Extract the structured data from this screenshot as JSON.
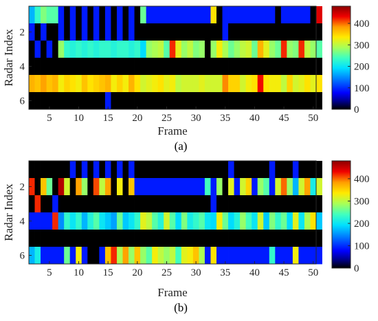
{
  "chart_data": [
    {
      "type": "heatmap",
      "caption": "(a)",
      "xlabel": "Frame",
      "ylabel": "Radar Index",
      "x_range": [
        1.5,
        50.5
      ],
      "y_range": [
        0.5,
        6.5
      ],
      "xticks": [
        5,
        10,
        15,
        20,
        25,
        30,
        35,
        40,
        45,
        50
      ],
      "yticks": [
        2,
        4,
        6
      ],
      "colorbar": {
        "range": [
          0,
          480
        ],
        "ticks": [
          0,
          100,
          200,
          300,
          400
        ],
        "colormap": "jet"
      },
      "rows": [
        [
          170,
          230,
          270,
          250,
          250,
          90,
          0,
          90,
          0,
          90,
          0,
          90,
          0,
          90,
          0,
          90,
          0,
          90,
          0,
          260,
          90,
          90,
          90,
          90,
          90,
          90,
          90,
          90,
          90,
          90,
          90,
          340,
          0,
          90,
          90,
          90,
          90,
          90,
          90,
          90,
          90,
          90,
          0,
          90,
          90,
          90,
          90,
          90,
          0,
          440
        ],
        [
          90,
          0,
          90,
          0,
          0,
          90,
          0,
          90,
          0,
          90,
          0,
          90,
          0,
          90,
          0,
          90,
          0,
          90,
          0,
          0,
          0,
          0,
          0,
          0,
          0,
          0,
          0,
          0,
          0,
          0,
          0,
          0,
          0,
          90,
          0,
          0,
          0,
          0,
          0,
          0,
          0,
          0,
          0,
          0,
          0,
          0,
          0,
          0,
          0,
          0
        ],
        [
          0,
          90,
          0,
          90,
          0,
          280,
          230,
          220,
          230,
          220,
          230,
          220,
          230,
          230,
          220,
          230,
          230,
          220,
          230,
          190,
          280,
          290,
          300,
          250,
          420,
          320,
          280,
          300,
          270,
          280,
          0,
          280,
          330,
          290,
          260,
          280,
          300,
          310,
          260,
          370,
          320,
          280,
          260,
          420,
          280,
          270,
          420,
          300,
          280,
          250
        ],
        [
          0,
          0,
          0,
          0,
          0,
          0,
          0,
          0,
          0,
          0,
          0,
          0,
          0,
          0,
          0,
          0,
          0,
          0,
          0,
          0,
          0,
          0,
          0,
          0,
          0,
          0,
          0,
          0,
          0,
          0,
          0,
          0,
          0,
          0,
          0,
          0,
          0,
          0,
          0,
          0,
          0,
          0,
          0,
          0,
          0,
          0,
          0,
          0,
          0,
          0
        ],
        [
          370,
          360,
          380,
          360,
          370,
          330,
          350,
          340,
          330,
          360,
          340,
          350,
          360,
          370,
          330,
          350,
          330,
          370,
          340,
          310,
          320,
          330,
          340,
          320,
          330,
          300,
          310,
          310,
          310,
          320,
          310,
          310,
          310,
          390,
          350,
          350,
          310,
          330,
          340,
          430,
          340,
          330,
          330,
          300,
          350,
          310,
          320,
          340,
          320,
          340
        ],
        [
          0,
          0,
          0,
          0,
          0,
          0,
          0,
          0,
          0,
          0,
          0,
          0,
          0,
          90,
          0,
          0,
          0,
          0,
          0,
          0,
          0,
          0,
          0,
          0,
          0,
          0,
          0,
          0,
          0,
          0,
          0,
          0,
          0,
          0,
          0,
          0,
          0,
          0,
          0,
          0,
          0,
          0,
          0,
          0,
          0,
          0,
          0,
          0,
          0,
          0
        ]
      ]
    },
    {
      "type": "heatmap",
      "caption": "(b)",
      "xlabel": "Frame",
      "ylabel": "Radar Index",
      "x_range": [
        1.5,
        50.5
      ],
      "y_range": [
        0.5,
        6.5
      ],
      "xticks": [
        5,
        10,
        15,
        20,
        25,
        30,
        35,
        40,
        45,
        50
      ],
      "yticks": [
        2,
        4,
        6
      ],
      "colorbar": {
        "range": [
          0,
          480
        ],
        "ticks": [
          0,
          100,
          200,
          300,
          400
        ],
        "colormap": "jet"
      },
      "rows": [
        [
          0,
          0,
          0,
          0,
          0,
          0,
          0,
          90,
          0,
          90,
          0,
          90,
          0,
          90,
          0,
          90,
          0,
          90,
          0,
          0,
          0,
          0,
          0,
          0,
          0,
          0,
          0,
          0,
          0,
          0,
          0,
          0,
          0,
          0,
          90,
          0,
          0,
          0,
          0,
          0,
          0,
          90,
          0,
          0,
          0,
          90,
          0,
          0,
          0,
          0
        ],
        [
          420,
          0,
          360,
          260,
          0,
          460,
          310,
          0,
          380,
          280,
          0,
          410,
          300,
          380,
          0,
          330,
          0,
          360,
          90,
          90,
          90,
          90,
          90,
          90,
          90,
          90,
          90,
          90,
          90,
          90,
          240,
          90,
          280,
          0,
          320,
          90,
          310,
          350,
          90,
          280,
          250,
          90,
          310,
          400,
          280,
          170,
          310,
          380,
          210,
          310
        ],
        [
          0,
          420,
          0,
          0,
          90,
          0,
          0,
          0,
          0,
          0,
          0,
          0,
          0,
          0,
          0,
          0,
          0,
          0,
          0,
          0,
          0,
          0,
          0,
          0,
          0,
          0,
          0,
          0,
          0,
          0,
          0,
          90,
          0,
          0,
          0,
          0,
          0,
          0,
          0,
          0,
          0,
          0,
          0,
          0,
          0,
          0,
          0,
          0,
          0,
          0
        ],
        [
          90,
          90,
          90,
          90,
          420,
          150,
          230,
          200,
          230,
          170,
          220,
          250,
          200,
          180,
          160,
          260,
          180,
          200,
          230,
          320,
          300,
          250,
          220,
          310,
          250,
          190,
          270,
          210,
          230,
          250,
          200,
          190,
          330,
          260,
          190,
          220,
          280,
          240,
          200,
          310,
          180,
          270,
          230,
          260,
          190,
          320,
          200,
          290,
          340,
          180
        ],
        [
          0,
          0,
          0,
          0,
          0,
          0,
          0,
          0,
          0,
          0,
          0,
          0,
          0,
          0,
          0,
          0,
          0,
          0,
          0,
          0,
          0,
          0,
          0,
          0,
          0,
          0,
          0,
          0,
          0,
          0,
          0,
          0,
          0,
          0,
          0,
          0,
          0,
          0,
          0,
          0,
          0,
          0,
          0,
          0,
          0,
          0,
          0,
          0,
          0,
          0
        ],
        [
          170,
          210,
          90,
          90,
          90,
          90,
          260,
          90,
          330,
          90,
          0,
          0,
          90,
          360,
          420,
          290,
          380,
          280,
          360,
          280,
          250,
          330,
          300,
          280,
          300,
          240,
          320,
          330,
          360,
          290,
          90,
          340,
          90,
          90,
          90,
          90,
          90,
          90,
          90,
          90,
          90,
          230,
          90,
          90,
          90,
          330,
          90,
          90,
          90,
          90
        ]
      ]
    }
  ]
}
